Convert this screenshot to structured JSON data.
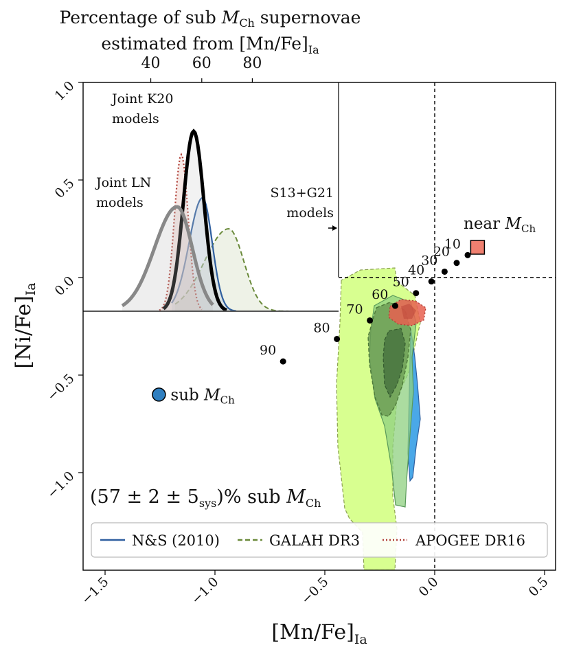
{
  "chart_data": {
    "type": "scatter",
    "top_axis": {
      "label_line1_prefix": "Percentage of sub ",
      "label_line1_M": "M",
      "label_line1_sub": "Ch",
      "label_line1_suffix": " supernovae",
      "label_line2_prefix": "estimated from [Mn/Fe]",
      "label_line2_sub": "Ia",
      "ticks": [
        {
          "label": "40",
          "x": -1.292
        },
        {
          "label": "60",
          "x": -1.06
        },
        {
          "label": "80",
          "x": -0.83
        }
      ]
    },
    "x_axis": {
      "label_prefix": "[Mn/Fe]",
      "label_sub": "Ia",
      "range": [
        -1.6,
        0.55
      ],
      "ticks": [
        "-1.5",
        "-1.0",
        "-0.5",
        "0.0",
        "0.5"
      ],
      "tick_values": [
        -1.5,
        -1.0,
        -0.5,
        0.0,
        0.5
      ]
    },
    "y_axis": {
      "label_prefix": "[Ni/Fe]",
      "label_sub": "Ia",
      "range": [
        -1.5,
        1.0
      ],
      "ticks": [
        "-1.0",
        "-0.5",
        "0.0",
        "0.5",
        "1.0"
      ],
      "tick_values": [
        -1.0,
        -0.5,
        0.0,
        0.5,
        1.0
      ]
    },
    "reference_lines": {
      "x": 0.0,
      "y": 0.0
    },
    "s13_g21_points": [
      {
        "label": "10",
        "x": 0.15,
        "y": 0.115
      },
      {
        "label": "20",
        "x": 0.1,
        "y": 0.075
      },
      {
        "label": "30",
        "x": 0.045,
        "y": 0.03
      },
      {
        "label": "40",
        "x": -0.015,
        "y": -0.02
      },
      {
        "label": "50",
        "x": -0.085,
        "y": -0.08
      },
      {
        "label": "60",
        "x": -0.18,
        "y": -0.145
      },
      {
        "label": "70",
        "x": -0.295,
        "y": -0.22
      },
      {
        "label": "80",
        "x": -0.445,
        "y": -0.315
      },
      {
        "label": "90",
        "x": -0.69,
        "y": -0.43
      }
    ],
    "markers": {
      "near": {
        "x": 0.195,
        "y": 0.155,
        "label": "near ",
        "M": "M",
        "sub": "Ch",
        "color": "#f08070"
      },
      "sub": {
        "x": -1.255,
        "y": -0.6,
        "label": "sub ",
        "M": "M",
        "sub": "Ch",
        "color": "#2f7fc0"
      }
    },
    "inset": {
      "labels": {
        "k20_line1": "Joint K20",
        "k20_line2": "models",
        "ln_line1": "Joint LN",
        "ln_line2": "models",
        "s13_line1": "S13+G21",
        "s13_line2": "models"
      }
    },
    "annotation": {
      "open": "(57 ± 2 ± 5",
      "sys": "sys",
      "close": ")% sub ",
      "M": "M",
      "sub": "Ch"
    },
    "legend": {
      "placement": "bottom",
      "entries": [
        {
          "label": "N&S (2010)",
          "color": "#2f5f9f",
          "style": "solid"
        },
        {
          "label": "GALAH DR3",
          "color": "#6a8a3a",
          "style": "dashed"
        },
        {
          "label": "APOGEE DR16",
          "color": "#b04038",
          "style": "dotted"
        }
      ]
    },
    "colors": {
      "ns_fill": "#4aa8e8",
      "galah_fill": "#d8ff90",
      "galah_dark": "#4e7a3a",
      "apogee_fill": "#e86050",
      "inset_k20": "#000000",
      "inset_ln": "#888888"
    }
  }
}
